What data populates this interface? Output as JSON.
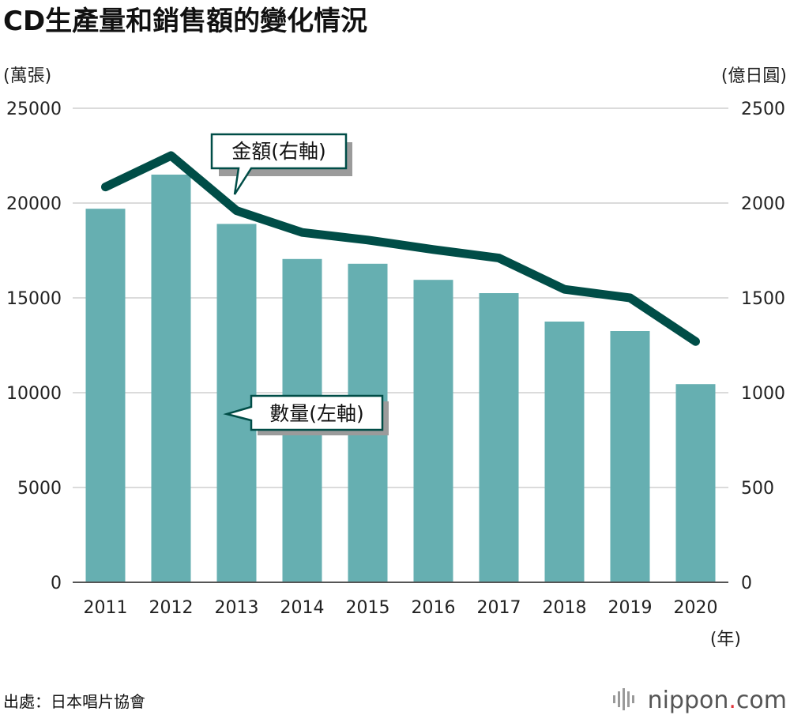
{
  "title": "CD生產量和銷售額的變化情況",
  "chart_data": {
    "type": "bar+line",
    "categories": [
      "2011",
      "2012",
      "2013",
      "2014",
      "2015",
      "2016",
      "2017",
      "2018",
      "2019",
      "2020"
    ],
    "series": [
      {
        "name": "數量(左軸)",
        "axis": "left",
        "type": "bar",
        "values": [
          19700,
          21500,
          18900,
          17050,
          16800,
          15950,
          15250,
          13750,
          13250,
          10450
        ]
      },
      {
        "name": "金額(右軸)",
        "axis": "right",
        "type": "line",
        "values": [
          2085,
          2250,
          1960,
          1845,
          1805,
          1755,
          1710,
          1545,
          1500,
          1270
        ]
      }
    ],
    "left_axis": {
      "unit": "(萬張)",
      "ylim": [
        0,
        25000
      ],
      "ticks": [
        "0",
        "5000",
        "10000",
        "15000",
        "20000",
        "25000"
      ]
    },
    "right_axis": {
      "unit": "(億日圓)",
      "ylim": [
        0,
        2500
      ],
      "ticks": [
        "0",
        "500",
        "1000",
        "1500",
        "2000",
        "2500"
      ]
    },
    "x_unit": "(年)",
    "grid": true,
    "colors": {
      "bar": "#66afb1",
      "line": "#004d47"
    }
  },
  "callouts": {
    "line_label": "金額(右軸)",
    "bar_label": "數量(左軸)"
  },
  "source": "出處：日本唱片協會",
  "brand": {
    "name": "nippon",
    "dot": ".",
    "suffix": "com"
  }
}
